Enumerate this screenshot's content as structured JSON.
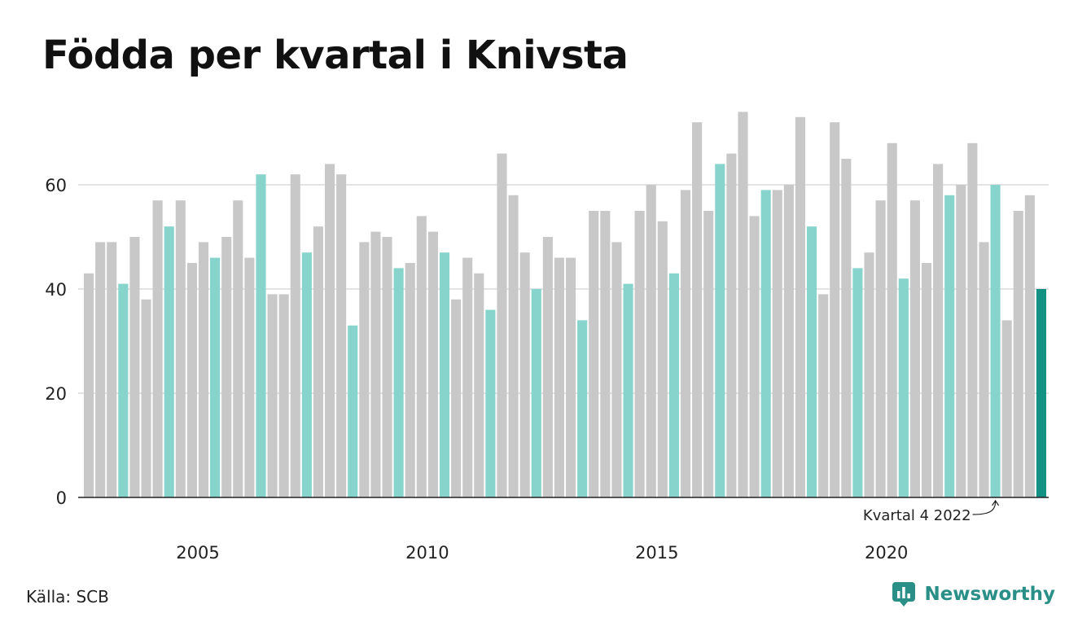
{
  "title": "Födda per kvartal i Knivsta",
  "source": "Källa: SCB",
  "brand": {
    "name": "Newsworthy",
    "icon": "newsworthy-logo-icon"
  },
  "colors": {
    "default_bar": "#c8c8c8",
    "q4_bar": "#86d4cb",
    "latest_bar": "#139183",
    "grid": "#e3e3e3",
    "axis": "#222222",
    "brand": "#2a8f87"
  },
  "chart_data": {
    "type": "bar",
    "title": "Födda per kvartal i Knivsta",
    "xlabel": "",
    "ylabel": "",
    "ylim": [
      0,
      75
    ],
    "yticks": [
      0,
      20,
      40,
      60
    ],
    "grid": true,
    "start": {
      "year": 2003,
      "quarter": 1
    },
    "x_tick_labels": [
      "2005",
      "2010",
      "2015",
      "2020"
    ],
    "highlight_rule": "Kvartal 4 in light teal; latest quarter in dark teal",
    "annotation": {
      "text": "Kvartal 4 2022",
      "year": 2022,
      "quarter": 4
    },
    "values": [
      43,
      49,
      49,
      41,
      50,
      38,
      57,
      52,
      57,
      45,
      49,
      46,
      50,
      57,
      46,
      62,
      39,
      39,
      62,
      47,
      52,
      64,
      62,
      33,
      49,
      51,
      50,
      44,
      45,
      54,
      51,
      47,
      38,
      46,
      43,
      36,
      66,
      58,
      47,
      40,
      50,
      46,
      46,
      34,
      55,
      55,
      49,
      41,
      55,
      60,
      53,
      43,
      59,
      72,
      55,
      64,
      66,
      74,
      54,
      59,
      59,
      60,
      73,
      52,
      39,
      72,
      65,
      44,
      47,
      57,
      68,
      42,
      57,
      45,
      64,
      58,
      60,
      68,
      49,
      60,
      34,
      55,
      58,
      40
    ]
  }
}
